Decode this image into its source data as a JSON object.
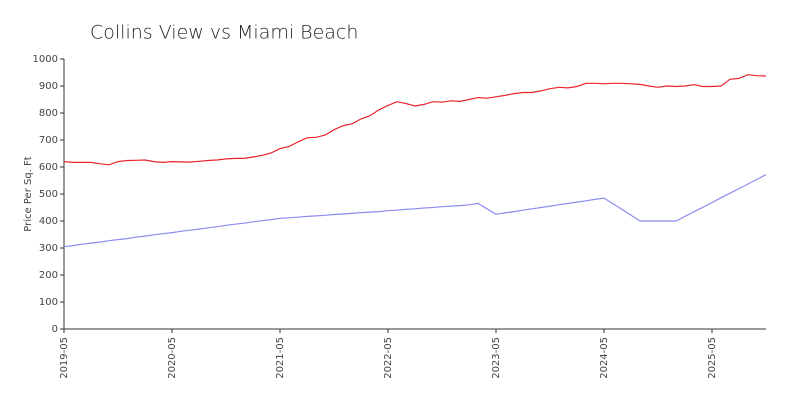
{
  "chart_data": {
    "type": "line",
    "title": "Collins View vs Miami Beach",
    "ylabel": "Price Per Sq. Ft",
    "x": [
      "2019-05",
      "2019-06",
      "2019-07",
      "2019-08",
      "2019-09",
      "2019-10",
      "2019-11",
      "2019-12",
      "2020-01",
      "2020-02",
      "2020-03",
      "2020-04",
      "2020-05",
      "2020-06",
      "2020-07",
      "2020-08",
      "2020-09",
      "2020-10",
      "2020-11",
      "2020-12",
      "2021-01",
      "2021-02",
      "2021-03",
      "2021-04",
      "2021-05",
      "2021-06",
      "2021-07",
      "2021-08",
      "2021-09",
      "2021-10",
      "2021-11",
      "2021-12",
      "2022-01",
      "2022-02",
      "2022-03",
      "2022-04",
      "2022-05",
      "2022-06",
      "2022-07",
      "2022-08",
      "2022-09",
      "2022-10",
      "2022-11",
      "2022-12",
      "2023-01",
      "2023-02",
      "2023-03",
      "2023-04",
      "2023-05",
      "2023-06",
      "2023-07",
      "2023-08",
      "2023-09",
      "2023-10",
      "2023-11",
      "2023-12",
      "2024-01",
      "2024-02",
      "2024-03",
      "2024-04",
      "2024-05",
      "2024-06",
      "2024-07",
      "2024-08",
      "2024-09",
      "2024-10",
      "2024-11",
      "2024-12",
      "2025-01",
      "2025-02",
      "2025-03",
      "2025-04",
      "2025-05",
      "2025-06",
      "2025-07",
      "2025-08",
      "2025-09",
      "2025-10",
      "2025-11"
    ],
    "series": [
      {
        "color": "#e8252b",
        "values": [
          620,
          617,
          617,
          617,
          612,
          608,
          620,
          624,
          625,
          626,
          620,
          617,
          620,
          619,
          618,
          621,
          624,
          626,
          630,
          632,
          632,
          637,
          643,
          652,
          668,
          676,
          693,
          708,
          710,
          718,
          738,
          753,
          760,
          778,
          790,
          812,
          828,
          842,
          835,
          826,
          832,
          842,
          840,
          845,
          843,
          850,
          857,
          855,
          860,
          865,
          872,
          876,
          876,
          882,
          890,
          895,
          893,
          898,
          910,
          910,
          908,
          910,
          910,
          908,
          906,
          900,
          895,
          900,
          898,
          900,
          905,
          898,
          898,
          900,
          925,
          928,
          942,
          938,
          937
        ]
      },
      {
        "color": "#8c8cf0",
        "values": [
          305,
          309,
          314,
          318,
          322,
          327,
          331,
          335,
          340,
          344,
          349,
          353,
          357,
          362,
          366,
          370,
          375,
          379,
          384,
          388,
          392,
          397,
          401,
          405,
          410,
          412,
          414,
          417,
          419,
          421,
          424,
          426,
          428,
          431,
          433,
          435,
          438,
          440,
          443,
          445,
          448,
          450,
          453,
          455,
          457,
          460,
          465,
          445,
          425,
          430,
          435,
          440,
          445,
          450,
          455,
          460,
          465,
          470,
          475,
          480,
          485,
          464,
          443,
          421,
          400,
          400,
          400,
          400,
          400,
          417,
          434,
          451,
          468,
          486,
          503,
          520,
          537,
          554,
          572
        ]
      }
    ],
    "xticks": [
      "2019-05",
      "2020-05",
      "2021-05",
      "2022-05",
      "2023-05",
      "2024-05",
      "2025-05"
    ],
    "ylim": [
      0,
      1000
    ],
    "yticks": [
      0,
      100,
      200,
      300,
      400,
      500,
      600,
      700,
      800,
      900,
      1000
    ]
  }
}
